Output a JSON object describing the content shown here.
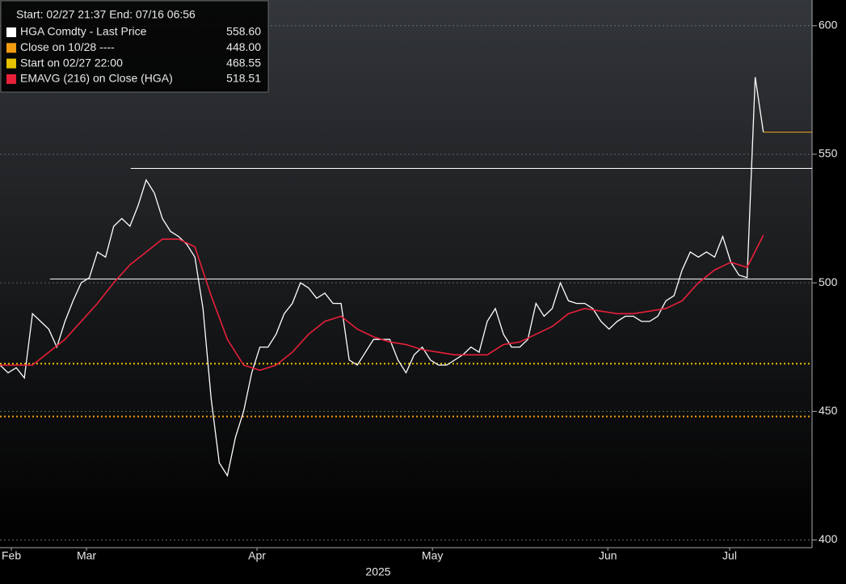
{
  "chart_data": {
    "type": "line",
    "header": "Start: 02/27 21:37 End: 07/16 06:56",
    "xlim": [
      0,
      200
    ],
    "ylim": [
      397,
      610
    ],
    "yticks": [
      400,
      450,
      500,
      550,
      600
    ],
    "xticks": [
      {
        "value": 2.8,
        "label": "Feb"
      },
      {
        "value": 21.3,
        "label": "Mar"
      },
      {
        "value": 63.3,
        "label": "Apr"
      },
      {
        "value": 106.5,
        "label": "May"
      },
      {
        "value": 149.7,
        "label": "Jun"
      },
      {
        "value": 179.7,
        "label": "Jul"
      }
    ],
    "x_label": "2025",
    "grid": true,
    "series": [
      {
        "name": "HGA Comdty - Last Price",
        "color": "#ffffff",
        "last_value": 558.6,
        "last_value_label": "558.60",
        "last_line_color": "#f5a623",
        "x": [
          0,
          2,
          4,
          6,
          8,
          10,
          12,
          14,
          16,
          18,
          20,
          22,
          24,
          26,
          28,
          30,
          32,
          34,
          36,
          38,
          40,
          42,
          44,
          46,
          48,
          50,
          52,
          54,
          56,
          58,
          60,
          62,
          64,
          66,
          68,
          70,
          72,
          74,
          76,
          78,
          80,
          82,
          84,
          86,
          88,
          90,
          92,
          94,
          96,
          98,
          100,
          102,
          104,
          106,
          108,
          110,
          112,
          114,
          116,
          118,
          120,
          122,
          124,
          126,
          128,
          130,
          132,
          134,
          136,
          138,
          140,
          142,
          144,
          146,
          148,
          150,
          152,
          154,
          156,
          158,
          160,
          162,
          164,
          166,
          168,
          170,
          172,
          174,
          176,
          178,
          180,
          182,
          184,
          186,
          188
        ],
        "values": [
          468,
          465,
          467,
          463,
          488,
          485,
          482,
          475,
          485,
          493,
          500,
          502,
          512,
          510,
          522,
          525,
          522,
          530,
          540,
          535,
          525,
          520,
          518,
          515,
          510,
          490,
          455,
          430,
          425,
          440,
          450,
          465,
          475,
          475,
          480,
          488,
          492,
          500,
          498,
          494,
          496,
          492,
          492,
          470,
          468,
          473,
          478,
          478,
          478,
          470,
          465,
          472,
          475,
          470,
          468,
          468,
          470,
          472,
          475,
          473,
          485,
          490,
          480,
          475,
          475,
          478,
          492,
          487,
          490,
          500,
          493,
          492,
          492,
          490,
          485,
          482,
          485,
          487,
          487,
          485,
          485,
          487,
          493,
          495,
          505,
          512,
          510,
          512,
          510,
          518,
          508,
          503,
          502,
          580,
          558.6
        ]
      },
      {
        "name": "EMAVG (216)  on Close (HGA)",
        "color": "#e8203a",
        "last_value": 518.51,
        "last_value_label": "518.51",
        "x": [
          0,
          4,
          8,
          12,
          16,
          20,
          24,
          28,
          32,
          36,
          40,
          44,
          48,
          52,
          56,
          60,
          64,
          68,
          72,
          76,
          80,
          84,
          88,
          92,
          96,
          100,
          104,
          108,
          112,
          116,
          120,
          124,
          128,
          132,
          136,
          140,
          144,
          148,
          152,
          156,
          160,
          164,
          168,
          172,
          176,
          180,
          184,
          188
        ],
        "values": [
          468,
          468,
          468,
          473,
          478,
          485,
          492,
          500,
          507,
          512,
          517,
          517,
          514,
          495,
          478,
          468,
          466,
          468,
          473,
          480,
          485,
          487,
          482,
          479,
          477,
          476,
          474,
          473,
          472,
          472,
          472,
          476,
          477,
          480,
          483,
          488,
          490,
          489,
          488,
          488,
          489,
          490,
          493,
          500,
          505,
          508,
          506,
          518.51
        ]
      }
    ],
    "reference_lines": [
      {
        "name": "Close on 10/28 ----",
        "color": "#f39c12",
        "value": 448,
        "value_label": "448.00"
      },
      {
        "name": "Start on 02/27 22:00",
        "color": "#e6c200",
        "value": 468.55,
        "value_label": "468.55"
      }
    ],
    "hlines": [
      {
        "value": 544.5,
        "x_start": 32.2,
        "color": "#ffffff"
      },
      {
        "value": 501.5,
        "x_start": 12.3,
        "color": "#ffffff"
      }
    ]
  }
}
